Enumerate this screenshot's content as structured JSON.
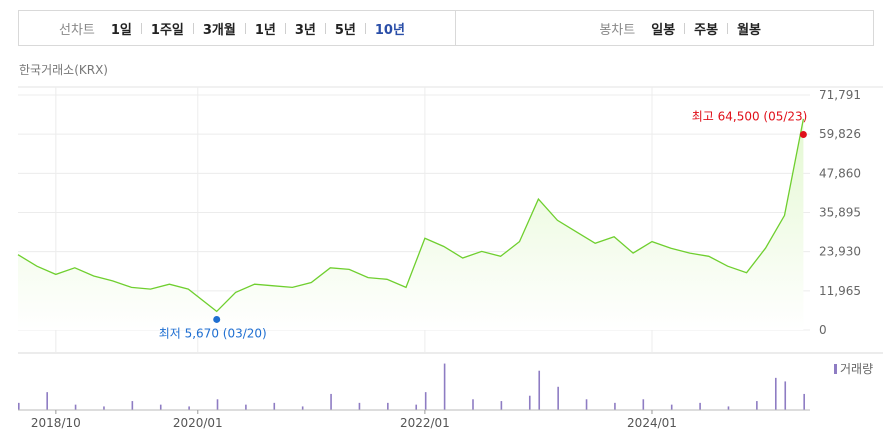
{
  "tabs": {
    "line_chart_label": "선차트",
    "line_periods": [
      "1일",
      "1주일",
      "3개월",
      "1년",
      "3년",
      "5년",
      "10년"
    ],
    "active_period": "10년",
    "candle_chart_label": "봉차트",
    "candle_periods": [
      "일봉",
      "주봉",
      "월봉"
    ]
  },
  "source": "한국거래소(KRX)",
  "colors": {
    "line": "#6fcf2f",
    "fill_top": "#e4f8d2",
    "high": "#e0101a",
    "low": "#1f6fd1",
    "volume": "#8e7cc3",
    "active_tab": "#2a4ea8"
  },
  "chart_data": [
    {
      "type": "area",
      "y_ticks": [
        "71,791",
        "59,826",
        "47,860",
        "35,895",
        "23,930",
        "11,965",
        "0"
      ],
      "ylim": [
        0,
        71791
      ],
      "x_ticks": [
        {
          "label": "2018/10",
          "date": "2018-10"
        },
        {
          "label": "2020/01",
          "date": "2020-01"
        },
        {
          "label": "2022/01",
          "date": "2022-01"
        },
        {
          "label": "2024/01",
          "date": "2024-01"
        }
      ],
      "grid": true,
      "high": {
        "label": "최고",
        "value": 64500,
        "text": "64,500",
        "date": "05/23"
      },
      "low": {
        "label": "최저",
        "value": 5670,
        "text": "5,670",
        "date": "03/20"
      },
      "x": [
        "2018-06",
        "2018-08",
        "2018-10",
        "2018-12",
        "2019-02",
        "2019-04",
        "2019-06",
        "2019-08",
        "2019-10",
        "2019-12",
        "2020-03",
        "2020-05",
        "2020-07",
        "2020-09",
        "2020-11",
        "2021-01",
        "2021-03",
        "2021-05",
        "2021-07",
        "2021-09",
        "2021-11",
        "2022-01",
        "2022-03",
        "2022-05",
        "2022-07",
        "2022-09",
        "2022-11",
        "2023-01",
        "2023-03",
        "2023-05",
        "2023-07",
        "2023-09",
        "2023-11",
        "2024-01",
        "2024-03",
        "2024-05",
        "2024-07",
        "2024-09",
        "2024-11",
        "2025-01",
        "2025-03",
        "2025-05"
      ],
      "values": [
        23000,
        19500,
        17000,
        19000,
        16500,
        15000,
        13000,
        12500,
        14000,
        12500,
        5670,
        11500,
        14000,
        13500,
        13000,
        14500,
        19000,
        18500,
        16000,
        15500,
        13000,
        28000,
        25500,
        22000,
        24000,
        22500,
        27000,
        40000,
        33500,
        30000,
        26500,
        28500,
        23500,
        27000,
        25000,
        23500,
        22500,
        19500,
        17500,
        25000,
        35000,
        64500
      ]
    },
    {
      "type": "bar",
      "legend": "거래량",
      "series_label": "거래량",
      "x": [
        "2018-06",
        "2018-09",
        "2018-12",
        "2019-03",
        "2019-06",
        "2019-09",
        "2019-12",
        "2020-03",
        "2020-06",
        "2020-09",
        "2020-12",
        "2021-03",
        "2021-06",
        "2021-09",
        "2021-12",
        "2022-01",
        "2022-03",
        "2022-06",
        "2022-09",
        "2022-12",
        "2023-01",
        "2023-03",
        "2023-06",
        "2023-09",
        "2023-12",
        "2024-03",
        "2024-06",
        "2024-09",
        "2024-12",
        "2025-02",
        "2025-03",
        "2025-05"
      ],
      "values": [
        4,
        10,
        3,
        2,
        5,
        3,
        2,
        6,
        3,
        4,
        2,
        9,
        4,
        4,
        3,
        10,
        26,
        6,
        5,
        8,
        22,
        13,
        6,
        4,
        6,
        3,
        4,
        2,
        5,
        18,
        16,
        9
      ]
    }
  ]
}
